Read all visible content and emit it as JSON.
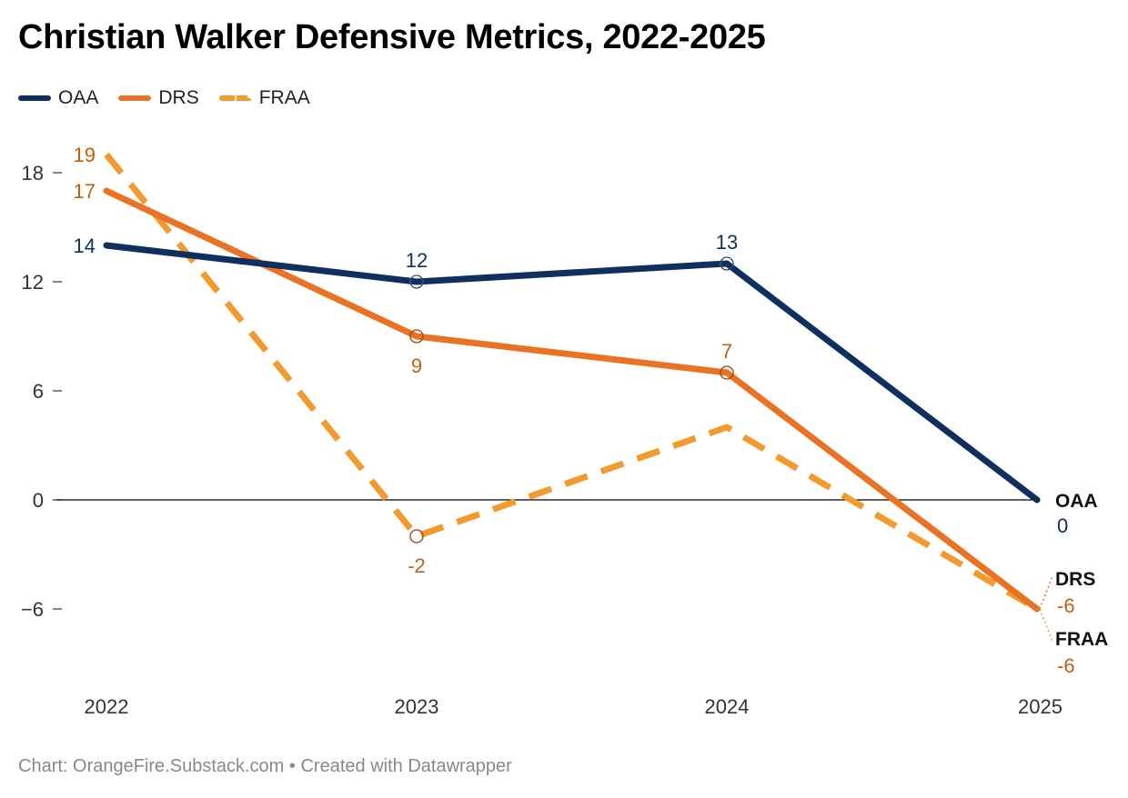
{
  "title": "Christian Walker Defensive Metrics, 2022-2025",
  "footer": {
    "source": "Chart: OrangeFire.Substack.com",
    "separator": "•",
    "credit": "Created with Datawrapper"
  },
  "colors": {
    "OAA": "#0f2f5e",
    "DRS": "#ea7224",
    "FRAA": "#f29a2e",
    "OAA_label": "#0f2f5e",
    "DRS_label": "#c45f0e",
    "FRAA_label": "#c45f0e",
    "zero_line": "#000000",
    "text": "#333333"
  },
  "chart_data": {
    "type": "line",
    "title": "Christian Walker Defensive Metrics, 2022-2025",
    "x": [
      "2022",
      "2023",
      "2024",
      "2025"
    ],
    "y_ticks": [
      "18",
      "12",
      "6",
      "0",
      "−6"
    ],
    "ylim": [
      -10,
      20
    ],
    "grid": false,
    "legend": "top-left",
    "series": [
      {
        "name": "OAA",
        "style": "solid",
        "values": [
          14,
          12,
          13,
          0
        ],
        "labels": [
          "14",
          "12",
          "13",
          "0"
        ]
      },
      {
        "name": "DRS",
        "style": "solid",
        "values": [
          17,
          9,
          7,
          -6
        ],
        "labels": [
          "17",
          "9",
          "7",
          "-6"
        ]
      },
      {
        "name": "FRAA",
        "style": "dashed",
        "values": [
          19,
          -2,
          4,
          -6
        ],
        "labels": [
          "19",
          "-2",
          "",
          "-6"
        ]
      }
    ]
  }
}
